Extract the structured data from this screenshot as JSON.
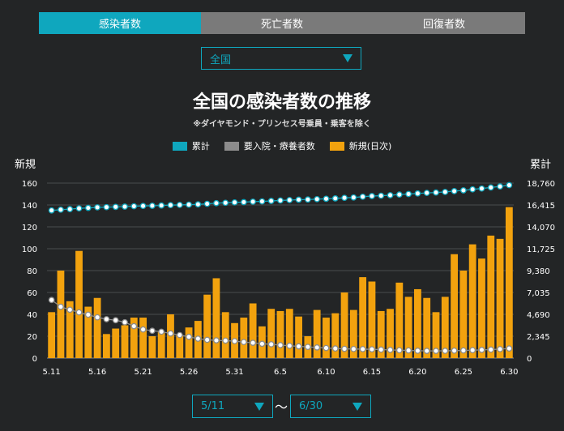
{
  "tabs": [
    {
      "label": "感染者数",
      "active": true
    },
    {
      "label": "死亡者数",
      "active": false
    },
    {
      "label": "回復者数",
      "active": false
    }
  ],
  "region_select": {
    "value": "全国"
  },
  "colors": {
    "accent": "#0fa7be",
    "active_cases": "#8c8c8c",
    "new_cases": "#f2a20e",
    "background": "#232526"
  },
  "chart_data": {
    "type": "bar",
    "title": "全国の感染者数の推移",
    "subtitle": "※ダイヤモンド・プリンセス号乗員・乗客を除く",
    "ylabel_left": "新規",
    "ylabel_right": "累計",
    "legend": [
      "累計",
      "要入院・療養者数",
      "新規(日次)"
    ],
    "legend_placement": "top-center",
    "ylim_left": [
      0,
      160
    ],
    "left_ticks": [
      "0",
      "20",
      "40",
      "60",
      "80",
      "100",
      "120",
      "140",
      "160"
    ],
    "ylim_right": [
      0,
      18760
    ],
    "right_ticks": [
      "0",
      "2,345",
      "4,690",
      "7,035",
      "9,380",
      "11,725",
      "14,070",
      "16,415",
      "18,760"
    ],
    "x_tick_labels": [
      "5.11",
      "5.16",
      "5.21",
      "5.26",
      "5.31",
      "6.5",
      "6.10",
      "6.15",
      "6.20",
      "6.25",
      "6.30"
    ],
    "grid": true,
    "categories": [
      "5.11",
      "5.12",
      "5.13",
      "5.14",
      "5.15",
      "5.16",
      "5.17",
      "5.18",
      "5.19",
      "5.20",
      "5.21",
      "5.22",
      "5.23",
      "5.24",
      "5.25",
      "5.26",
      "5.27",
      "5.28",
      "5.29",
      "5.30",
      "5.31",
      "6.1",
      "6.2",
      "6.3",
      "6.4",
      "6.5",
      "6.6",
      "6.7",
      "6.8",
      "6.9",
      "6.10",
      "6.11",
      "6.12",
      "6.13",
      "6.14",
      "6.15",
      "6.16",
      "6.17",
      "6.18",
      "6.19",
      "6.20",
      "6.21",
      "6.22",
      "6.23",
      "6.24",
      "6.25",
      "6.26",
      "6.27",
      "6.28",
      "6.29",
      "6.30"
    ],
    "series": [
      {
        "name": "新規(日次)",
        "axis": "left",
        "values": [
          42,
          80,
          52,
          98,
          47,
          55,
          22,
          27,
          30,
          37,
          37,
          20,
          24,
          40,
          21,
          28,
          34,
          58,
          73,
          42,
          32,
          37,
          50,
          29,
          45,
          43,
          45,
          38,
          20,
          44,
          37,
          41,
          60,
          44,
          74,
          70,
          43,
          45,
          69,
          56,
          63,
          55,
          42,
          56,
          95,
          80,
          104,
          91,
          112,
          109,
          138
        ]
      },
      {
        "name": "累計",
        "axis": "right",
        "values": [
          15830,
          15910,
          15970,
          16050,
          16100,
          16160,
          16180,
          16210,
          16240,
          16280,
          16310,
          16330,
          16360,
          16400,
          16420,
          16450,
          16480,
          16540,
          16610,
          16650,
          16690,
          16720,
          16770,
          16800,
          16850,
          16900,
          16940,
          16980,
          17000,
          17040,
          17080,
          17120,
          17180,
          17220,
          17300,
          17370,
          17410,
          17460,
          17530,
          17590,
          17650,
          17710,
          17750,
          17810,
          17900,
          17980,
          18090,
          18180,
          18290,
          18400,
          18540
        ]
      },
      {
        "name": "要入院・療養者数",
        "axis": "right",
        "values": [
          6230,
          5500,
          5180,
          4900,
          4650,
          4370,
          4170,
          4060,
          3840,
          3420,
          3070,
          2930,
          2830,
          2640,
          2470,
          2280,
          2080,
          1960,
          1900,
          1870,
          1820,
          1720,
          1640,
          1530,
          1480,
          1390,
          1320,
          1260,
          1200,
          1140,
          1080,
          1030,
          990,
          970,
          960,
          940,
          910,
          880,
          840,
          820,
          790,
          770,
          770,
          780,
          800,
          820,
          850,
          880,
          910,
          960,
          1030
        ]
      }
    ]
  },
  "date_range": {
    "start": "5/11",
    "separator": "〜",
    "end": "6/30"
  }
}
